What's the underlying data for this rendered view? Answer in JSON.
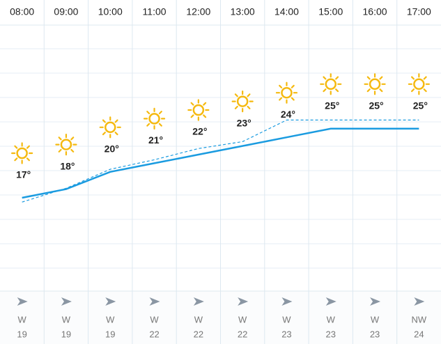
{
  "chart_data": {
    "type": "line",
    "categories": [
      "08:00",
      "09:00",
      "10:00",
      "11:00",
      "12:00",
      "13:00",
      "14:00",
      "15:00",
      "16:00",
      "17:00"
    ],
    "series": [
      {
        "color": "#1a9be0",
        "style": "solid",
        "values": [
          17,
          18,
          20,
          21,
          22,
          23,
          24,
          25,
          25,
          25
        ],
        "value_labels": [
          "17°",
          "18°",
          "20°",
          "21°",
          "22°",
          "23°",
          "24°",
          "25°",
          "25°",
          "25°"
        ]
      },
      {
        "color": "#1a9be0",
        "style": "dashed",
        "values": [
          16.5,
          18.1,
          20.3,
          21.4,
          22.7,
          23.5,
          26,
          26,
          26,
          26
        ]
      }
    ],
    "wind_direction": [
      "W",
      "W",
      "W",
      "W",
      "W",
      "W",
      "W",
      "W",
      "W",
      "NW"
    ],
    "wind_speed": [
      19,
      19,
      19,
      22,
      22,
      22,
      23,
      23,
      23,
      24
    ]
  }
}
